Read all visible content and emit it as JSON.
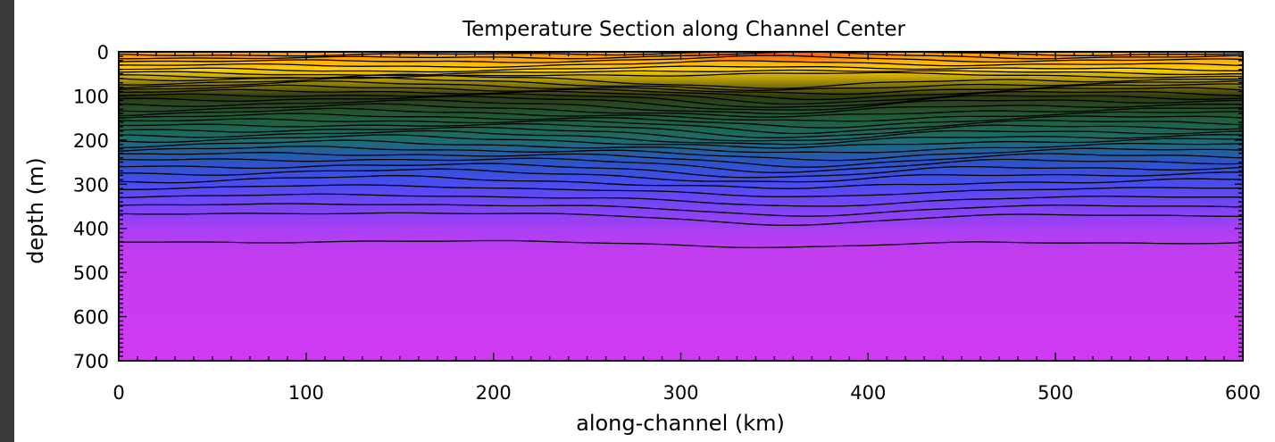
{
  "chart_data": {
    "type": "heatmap",
    "title": "Temperature Section along Channel Center",
    "xlabel": "along-channel (km)",
    "ylabel": "depth (m)",
    "xlim": [
      0,
      600
    ],
    "ylim": [
      700,
      0
    ],
    "y_inverted": true,
    "x_ticks": [
      "0",
      "100",
      "200",
      "300",
      "400",
      "500",
      "600"
    ],
    "y_ticks": [
      "0",
      "100",
      "200",
      "300",
      "400",
      "500",
      "600",
      "700"
    ],
    "x_tick_values": [
      0,
      100,
      200,
      300,
      400,
      500,
      600
    ],
    "y_tick_values": [
      0,
      100,
      200,
      300,
      400,
      500,
      600,
      700
    ],
    "color_bands": [
      {
        "depth": 10,
        "color": "#ff9a00"
      },
      {
        "depth": 40,
        "color": "#ffd200"
      },
      {
        "depth": 100,
        "color": "#2e3a10"
      },
      {
        "depth": 150,
        "color": "#1f5e3a"
      },
      {
        "depth": 200,
        "color": "#1c6e6e"
      },
      {
        "depth": 250,
        "color": "#2a55c8"
      },
      {
        "depth": 300,
        "color": "#4a4cf2"
      },
      {
        "depth": 350,
        "color": "#7a44f6"
      },
      {
        "depth": 400,
        "color": "#a73ff4"
      },
      {
        "depth": 450,
        "color": "#c23cf0"
      },
      {
        "depth": 700,
        "color": "#cf3af2"
      }
    ],
    "warm_core": {
      "x_range": [
        280,
        420
      ],
      "depth_range": [
        0,
        30
      ],
      "color": "#ff4a10"
    },
    "contour_depths": [
      5,
      12,
      20,
      30,
      40,
      48,
      55,
      62,
      70,
      78,
      86,
      94,
      102,
      110,
      120,
      130,
      140,
      150,
      160,
      170,
      180,
      190,
      200,
      212,
      224,
      236,
      248,
      262,
      276,
      292,
      310,
      330,
      350,
      370,
      432
    ],
    "grid": false
  }
}
